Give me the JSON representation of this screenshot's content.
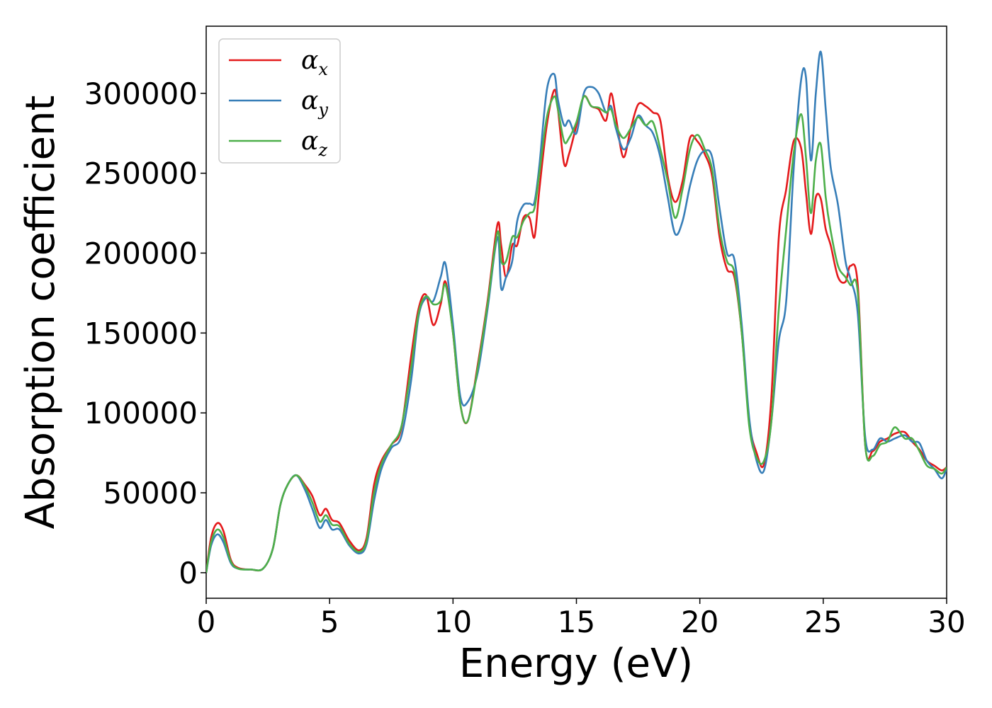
{
  "chart_data": {
    "type": "line",
    "title": "",
    "xlabel": "Energy (eV)",
    "ylabel": "Absorption coefficient",
    "xlim": [
      0,
      30
    ],
    "ylim": [
      -16000,
      342000
    ],
    "xticks": [
      0,
      5,
      10,
      15,
      20,
      25,
      30
    ],
    "yticks": [
      0,
      50000,
      100000,
      150000,
      200000,
      250000,
      300000
    ],
    "grid": false,
    "legend_position": "top-left",
    "series": [
      {
        "name": "α",
        "subscript": "x",
        "color": "#e41a1c",
        "x": [
          0,
          0.2,
          0.45,
          0.7,
          1.0,
          1.3,
          1.8,
          2.3,
          2.7,
          3.0,
          3.3,
          3.65,
          4.0,
          4.3,
          4.6,
          4.85,
          5.1,
          5.4,
          5.8,
          6.2,
          6.5,
          6.8,
          7.1,
          7.5,
          7.9,
          8.3,
          8.6,
          8.9,
          9.2,
          9.5,
          9.7,
          10.0,
          10.3,
          10.6,
          11.0,
          11.4,
          11.8,
          11.95,
          12.15,
          12.4,
          12.6,
          12.85,
          13.1,
          13.3,
          13.5,
          13.8,
          14.1,
          14.25,
          14.5,
          14.7,
          15.0,
          15.3,
          15.6,
          15.9,
          16.2,
          16.4,
          16.6,
          16.9,
          17.2,
          17.5,
          17.8,
          18.1,
          18.4,
          18.7,
          19.0,
          19.3,
          19.6,
          19.9,
          20.2,
          20.5,
          20.8,
          21.1,
          21.4,
          21.7,
          22.0,
          22.3,
          22.6,
          22.9,
          23.2,
          23.5,
          23.8,
          24.1,
          24.3,
          24.5,
          24.7,
          24.9,
          25.1,
          25.3,
          25.6,
          25.9,
          26.1,
          26.4,
          26.7,
          27.0,
          27.3,
          27.6,
          27.9,
          28.3,
          28.6,
          28.9,
          29.2,
          29.5,
          29.8,
          30.0
        ],
        "y": [
          0,
          22000,
          31000,
          26000,
          8000,
          3000,
          2000,
          2500,
          15000,
          42000,
          55000,
          61000,
          55000,
          48000,
          36000,
          40000,
          33000,
          31000,
          20000,
          14000,
          22000,
          55000,
          70000,
          80000,
          90000,
          135000,
          165000,
          174000,
          155000,
          168000,
          182000,
          150000,
          105000,
          95000,
          130000,
          170000,
          218000,
          205000,
          185000,
          205000,
          205000,
          222000,
          222000,
          210000,
          240000,
          280000,
          302000,
          290000,
          256000,
          262000,
          280000,
          298000,
          292000,
          290000,
          283000,
          300000,
          285000,
          260000,
          278000,
          293000,
          292000,
          288000,
          283000,
          248000,
          232000,
          245000,
          272000,
          270000,
          262000,
          248000,
          210000,
          190000,
          185000,
          150000,
          95000,
          75000,
          68000,
          110000,
          210000,
          240000,
          270000,
          266000,
          238000,
          212000,
          235000,
          234000,
          215000,
          205000,
          185000,
          182000,
          192000,
          180000,
          80000,
          76000,
          82000,
          84000,
          87000,
          88000,
          82000,
          77000,
          70000,
          67000,
          64000,
          66000
        ]
      },
      {
        "name": "α",
        "subscript": "y",
        "color": "#377eb8",
        "x": [
          0,
          0.2,
          0.45,
          0.7,
          1.0,
          1.3,
          1.8,
          2.3,
          2.7,
          3.0,
          3.3,
          3.65,
          4.0,
          4.3,
          4.6,
          4.85,
          5.1,
          5.4,
          5.8,
          6.2,
          6.5,
          6.8,
          7.1,
          7.5,
          7.9,
          8.3,
          8.6,
          8.9,
          9.2,
          9.5,
          9.7,
          10.0,
          10.3,
          10.6,
          11.0,
          11.4,
          11.8,
          11.95,
          12.15,
          12.4,
          12.6,
          12.85,
          13.1,
          13.3,
          13.5,
          13.8,
          14.1,
          14.25,
          14.5,
          14.7,
          15.0,
          15.3,
          15.6,
          15.9,
          16.2,
          16.4,
          16.6,
          16.9,
          17.2,
          17.5,
          17.8,
          18.1,
          18.4,
          18.7,
          19.0,
          19.3,
          19.6,
          19.9,
          20.2,
          20.5,
          20.8,
          21.1,
          21.4,
          21.7,
          22.0,
          22.3,
          22.6,
          22.9,
          23.2,
          23.5,
          23.8,
          24.1,
          24.3,
          24.5,
          24.7,
          24.9,
          25.1,
          25.3,
          25.6,
          25.9,
          26.1,
          26.4,
          26.7,
          27.0,
          27.3,
          27.6,
          27.9,
          28.3,
          28.6,
          28.9,
          29.2,
          29.5,
          29.8,
          30.0
        ],
        "y": [
          0,
          17000,
          24000,
          19000,
          6000,
          2500,
          2000,
          2500,
          15000,
          42000,
          55000,
          61000,
          52000,
          40000,
          28000,
          33000,
          27000,
          27000,
          17000,
          12000,
          18000,
          45000,
          65000,
          78000,
          85000,
          120000,
          160000,
          172000,
          170000,
          185000,
          193000,
          155000,
          110000,
          107000,
          125000,
          165000,
          210000,
          178000,
          185000,
          195000,
          220000,
          230000,
          231000,
          232000,
          255000,
          302000,
          312000,
          296000,
          280000,
          283000,
          275000,
          300000,
          304000,
          300000,
          288000,
          292000,
          278000,
          265000,
          272000,
          286000,
          280000,
          275000,
          260000,
          235000,
          212000,
          220000,
          242000,
          258000,
          264000,
          260000,
          228000,
          200000,
          196000,
          155000,
          97000,
          70000,
          64000,
          95000,
          145000,
          170000,
          252000,
          308000,
          310000,
          258000,
          300000,
          326000,
          290000,
          254000,
          230000,
          195000,
          184000,
          162000,
          85000,
          77000,
          84000,
          82000,
          84000,
          86000,
          82000,
          81000,
          70000,
          65000,
          59000,
          65000
        ]
      },
      {
        "name": "α",
        "subscript": "z",
        "color": "#4daf4a",
        "x": [
          0,
          0.2,
          0.45,
          0.7,
          1.0,
          1.3,
          1.8,
          2.3,
          2.7,
          3.0,
          3.3,
          3.65,
          4.0,
          4.3,
          4.6,
          4.85,
          5.1,
          5.4,
          5.8,
          6.2,
          6.5,
          6.8,
          7.1,
          7.5,
          7.9,
          8.3,
          8.6,
          8.9,
          9.2,
          9.5,
          9.7,
          10.0,
          10.3,
          10.6,
          11.0,
          11.4,
          11.8,
          11.95,
          12.15,
          12.4,
          12.6,
          12.85,
          13.1,
          13.3,
          13.5,
          13.8,
          14.1,
          14.25,
          14.5,
          14.7,
          15.0,
          15.3,
          15.6,
          15.9,
          16.2,
          16.4,
          16.6,
          16.9,
          17.2,
          17.5,
          17.8,
          18.1,
          18.4,
          18.7,
          19.0,
          19.3,
          19.6,
          19.9,
          20.2,
          20.5,
          20.8,
          21.1,
          21.4,
          21.7,
          22.0,
          22.3,
          22.6,
          22.9,
          23.2,
          23.5,
          23.8,
          24.1,
          24.3,
          24.5,
          24.7,
          24.9,
          25.1,
          25.3,
          25.6,
          25.9,
          26.1,
          26.4,
          26.7,
          27.0,
          27.3,
          27.6,
          27.9,
          28.3,
          28.6,
          28.9,
          29.2,
          29.5,
          29.8,
          30.0
        ],
        "y": [
          0,
          19000,
          27000,
          22000,
          7000,
          2500,
          2000,
          2500,
          15000,
          42000,
          55000,
          61000,
          54000,
          44000,
          32000,
          36000,
          30000,
          29000,
          18000,
          13000,
          20000,
          50000,
          68000,
          80000,
          91000,
          128000,
          162000,
          173000,
          168000,
          170000,
          180000,
          150000,
          105000,
          95000,
          128000,
          168000,
          213000,
          195000,
          195000,
          210000,
          210000,
          220000,
          225000,
          228000,
          250000,
          285000,
          298000,
          290000,
          270000,
          272000,
          282000,
          298000,
          292000,
          291000,
          288000,
          290000,
          280000,
          272000,
          278000,
          285000,
          280000,
          282000,
          265000,
          245000,
          222000,
          240000,
          265000,
          274000,
          265000,
          252000,
          215000,
          195000,
          188000,
          150000,
          92000,
          72000,
          70000,
          95000,
          165000,
          215000,
          262000,
          287000,
          260000,
          225000,
          258000,
          268000,
          235000,
          214000,
          192000,
          185000,
          180000,
          175000,
          80000,
          73000,
          80000,
          82000,
          91000,
          84000,
          84000,
          76000,
          67000,
          65000,
          62000,
          66000
        ]
      }
    ]
  }
}
